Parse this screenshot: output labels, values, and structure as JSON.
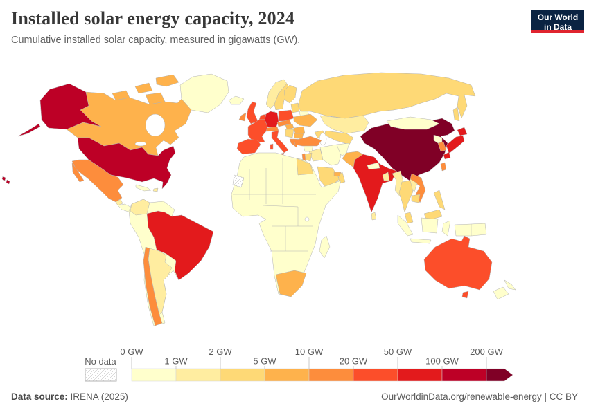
{
  "header": {
    "title": "Installed solar energy capacity, 2024",
    "subtitle": "Cumulative installed solar capacity, measured in gigawatts (GW)."
  },
  "logo": {
    "line1": "Our World",
    "line2": "in Data",
    "bg_color": "#0a2342",
    "accent_color": "#e0242f"
  },
  "legend": {
    "no_data_label": "No data",
    "tick_labels": [
      "0 GW",
      "1 GW",
      "2 GW",
      "5 GW",
      "10 GW",
      "20 GW",
      "50 GW",
      "100 GW",
      "200 GW"
    ],
    "bin_ranges": [
      "0-1 GW",
      "1-2 GW",
      "2-5 GW",
      "5-10 GW",
      "10-20 GW",
      "20-50 GW",
      "50-100 GW",
      "100-200 GW",
      "200+ GW"
    ],
    "bin_colors": [
      "#FFFFCC",
      "#FFEDA0",
      "#FED976",
      "#FEB24C",
      "#FD8D3C",
      "#FC4E2A",
      "#E31A1C",
      "#BD0026",
      "#800026"
    ]
  },
  "footer": {
    "source_label": "Data source:",
    "source_value": "IRENA (2025)",
    "right_text": "OurWorldinData.org/renewable-energy | CC BY"
  },
  "chart_data": {
    "type": "choropleth_map",
    "title": "Installed solar energy capacity, 2024",
    "unit": "GW",
    "legend_position": "bottom",
    "color_scheme": "YlOrRd",
    "countries": {
      "United States": "100-200 GW",
      "Canada": "5-10 GW",
      "Greenland": "0-1 GW",
      "Mexico": "10-20 GW",
      "Guatemala": "1-2 GW",
      "Central America": "0-1 GW",
      "Cuba": "0-1 GW",
      "Dominican Republic": "1-2 GW",
      "Colombia": "1-2 GW",
      "Brazil": "50-100 GW",
      "Chile": "10-20 GW",
      "Argentina": "1-2 GW",
      "Other South America": "0-1 GW",
      "Iceland": "0-1 GW",
      "United Kingdom": "20-50 GW",
      "Ireland": "10-20 GW",
      "Norway": "1-2 GW",
      "Sweden": "2-5 GW",
      "Finland": "2-5 GW",
      "Denmark": "5-10 GW",
      "Baltic states": "2-5 GW",
      "Belarus": "0-1 GW",
      "Netherlands": "20-50 GW",
      "Germany": "50-100 GW",
      "Poland": "20-50 GW",
      "Czechia": "10-20 GW",
      "Austria": "10-20 GW",
      "France": "20-50 GW",
      "Spain": "20-50 GW",
      "Italy": "20-50 GW",
      "Hungary": "5-10 GW",
      "Ukraine": "5-10 GW",
      "Romania": "5-10 GW",
      "Western Balkans": "2-5 GW",
      "Bulgaria": "5-10 GW",
      "Greece": "10-20 GW",
      "Turkey": "10-20 GW",
      "Caucasus": "2-5 GW",
      "Russia": "2-5 GW",
      "Kazakhstan": "1-2 GW",
      "Central Asia": "2-5 GW",
      "Mongolia": "0-1 GW",
      "China": "200+ GW",
      "North Korea": "0-1 GW",
      "South Korea": "10-20 GW",
      "Japan": "50-100 GW",
      "Taiwan": "10-20 GW",
      "India": "50-100 GW",
      "Pakistan": "5-10 GW",
      "Afghanistan": "0-1 GW",
      "Iran": "0-1 GW",
      "Iraq": "1-2 GW",
      "Syria": "0-1 GW",
      "Israel": "10-20 GW",
      "Jordan": "2-5 GW",
      "Saudi Arabia": "2-5 GW",
      "Yemen": "1-2 GW",
      "Oman": "2-5 GW",
      "United Arab Emirates": "5-10 GW",
      "Egypt": "2-5 GW",
      "Other Africa": "0-1 GW",
      "South Africa": "5-10 GW",
      "Madagascar": "0-1 GW",
      "Western Sahara": "No data",
      "Nepal": "0-1 GW",
      "Bangladesh": "1-2 GW",
      "Sri Lanka": "1-2 GW",
      "Myanmar": "1-2 GW",
      "Thailand": "2-5 GW",
      "Laos": "1-2 GW",
      "Vietnam": "10-20 GW",
      "Cambodia": "2-5 GW",
      "Malaysia": "2-5 GW",
      "Indonesia": "0-1 GW",
      "Philippines": "2-5 GW",
      "Papua New Guinea": "0-1 GW",
      "Australia": "20-50 GW",
      "New Zealand": "0-1 GW"
    }
  }
}
